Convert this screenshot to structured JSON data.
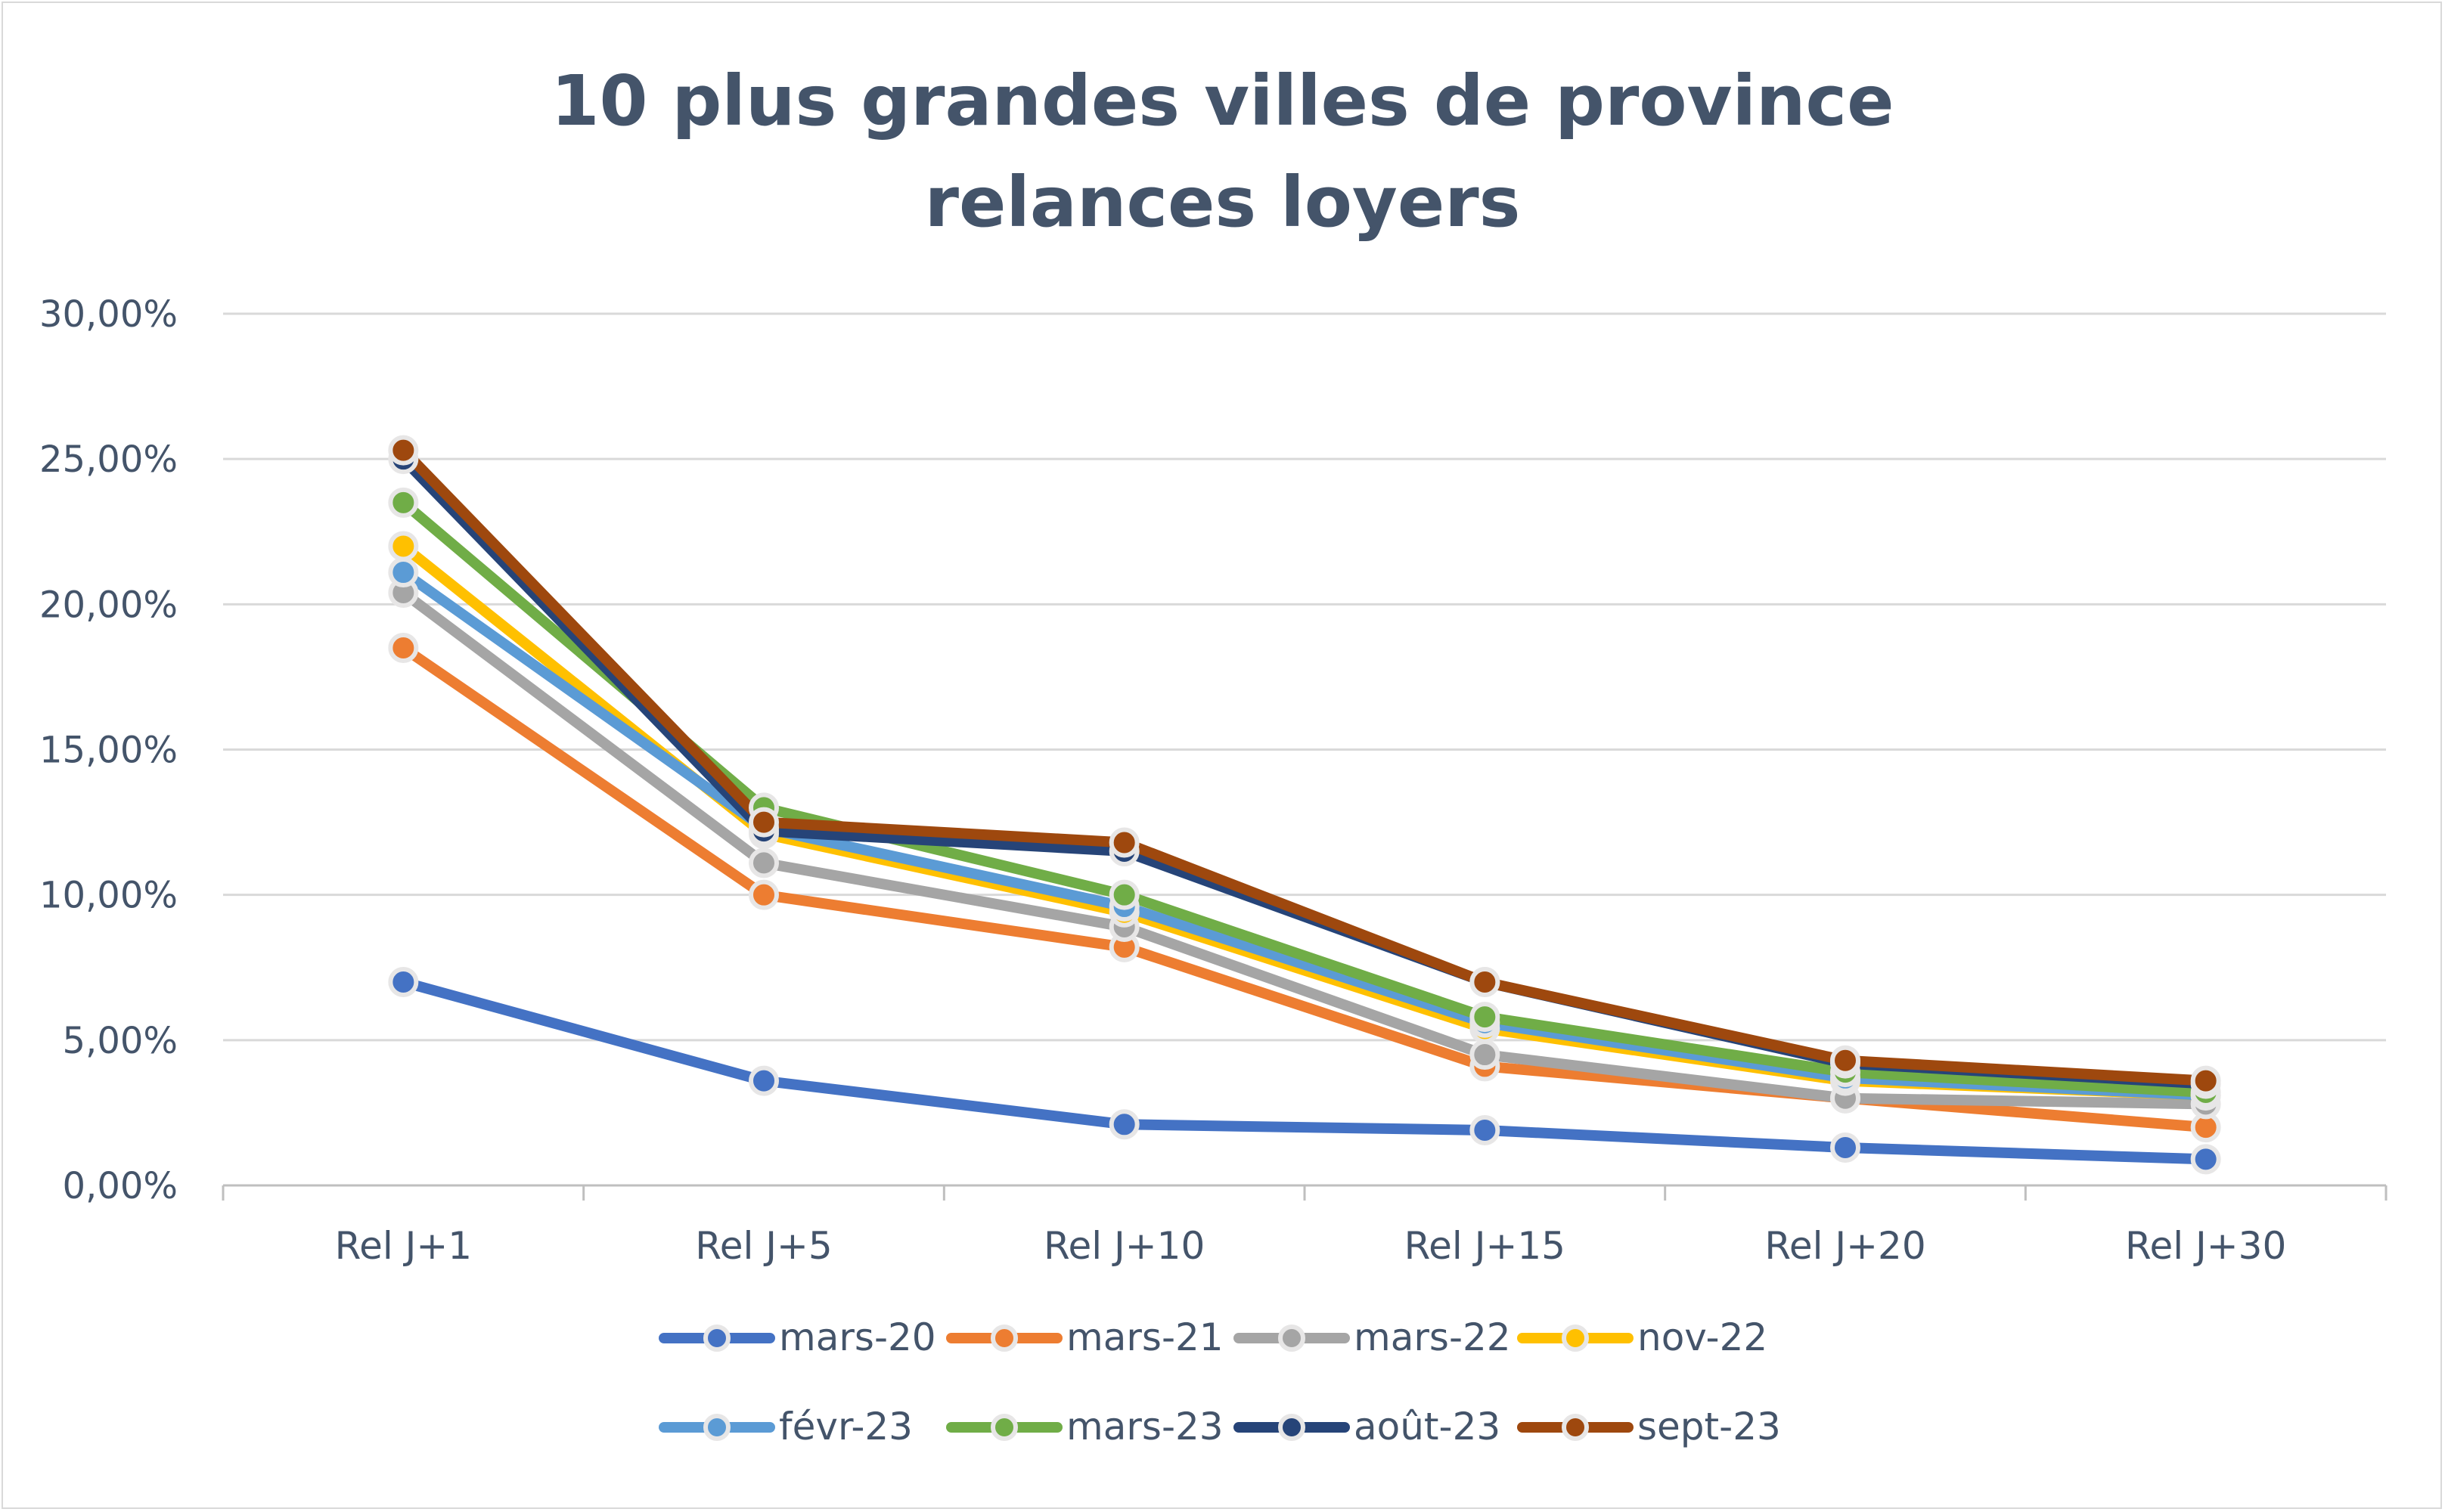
{
  "chart_data": {
    "type": "line",
    "title_line1": "10 plus grandes villes de province",
    "title_line2": "relances loyers",
    "categories": [
      "Rel J+1",
      "Rel J+5",
      "Rel J+10",
      "Rel J+15",
      "Rel J+20",
      "Rel J+30"
    ],
    "y_tick_labels": [
      "0,00%",
      "5,00%",
      "10,00%",
      "15,00%",
      "20,00%",
      "25,00%",
      "30,00%"
    ],
    "ylim": [
      0,
      30
    ],
    "y_unit": "%",
    "grid": true,
    "legend_position": "bottom",
    "series": [
      {
        "name": "mars-20",
        "color": "#4472c4",
        "values": [
          7.0,
          3.6,
          2.1,
          1.9,
          1.3,
          0.9
        ]
      },
      {
        "name": "mars-21",
        "color": "#ed7d31",
        "values": [
          18.5,
          10.0,
          8.2,
          4.1,
          3.0,
          2.0
        ]
      },
      {
        "name": "mars-22",
        "color": "#a5a5a5",
        "values": [
          20.4,
          11.1,
          8.9,
          4.5,
          3.0,
          2.8
        ]
      },
      {
        "name": "nov-22",
        "color": "#ffc000",
        "values": [
          22.0,
          12.1,
          9.4,
          5.4,
          3.6,
          3.1
        ]
      },
      {
        "name": "févr-23",
        "color": "#5b9bd5",
        "values": [
          21.1,
          12.3,
          9.6,
          5.6,
          3.7,
          3.1
        ]
      },
      {
        "name": "mars-23",
        "color": "#70ad47",
        "values": [
          23.5,
          13.0,
          10.0,
          5.8,
          3.9,
          3.2
        ]
      },
      {
        "name": "août-23",
        "color": "#264478",
        "values": [
          25.0,
          12.2,
          11.5,
          7.0,
          4.2,
          3.5
        ]
      },
      {
        "name": "sept-23",
        "color": "#9e480e",
        "values": [
          25.3,
          12.5,
          11.8,
          7.0,
          4.3,
          3.6
        ]
      }
    ]
  }
}
